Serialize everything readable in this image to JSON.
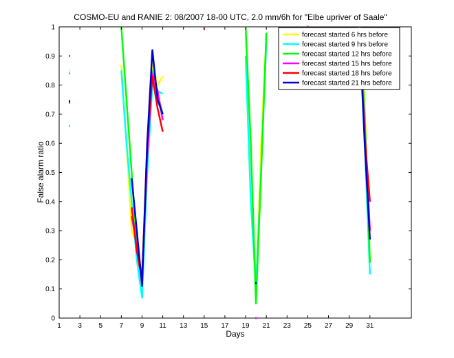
{
  "chart_data": {
    "type": "line",
    "title": "COSMO-EU and RANIE 2: 08/2007 18-00 UTC, 2.0 mm/6h for \"Elbe upriver of Saale\"",
    "xlabel": "Days",
    "ylabel": "False alarm ratio",
    "xlim": [
      1,
      35
    ],
    "ylim": [
      0,
      1
    ],
    "xticks": [
      1,
      3,
      5,
      7,
      9,
      11,
      13,
      15,
      17,
      19,
      21,
      23,
      25,
      27,
      29,
      31
    ],
    "yticks": [
      0,
      0.1,
      0.2,
      0.3,
      0.4,
      0.5,
      0.6,
      0.7,
      0.8,
      0.9,
      1
    ],
    "grid": false,
    "legend_position": "top-right",
    "series": [
      {
        "name": "forecast started 6 hrs before",
        "color": "#ffff00",
        "segments": [
          [
            [
              7,
              0.87
            ],
            [
              7.5,
              0.6
            ],
            [
              8,
              0.3
            ],
            [
              8.5,
              0.25
            ],
            [
              9,
              0.13
            ],
            [
              9.5,
              0.55
            ],
            [
              10,
              0.88
            ],
            [
              10.5,
              0.8
            ],
            [
              11,
              0.83
            ]
          ],
          [
            [
              19,
              0.98
            ],
            [
              19.5,
              0.6
            ],
            [
              20,
              0.07
            ],
            [
              20.5,
              0.6
            ],
            [
              21,
              0.97
            ]
          ],
          [
            [
              30,
              0.99
            ],
            [
              30.5,
              0.75
            ],
            [
              31,
              0.2
            ]
          ]
        ],
        "points": [
          [
            2,
            0.85
          ],
          [
            15,
            0.995
          ]
        ]
      },
      {
        "name": "forecast started 9 hrs before",
        "color": "#00ffff",
        "segments": [
          [
            [
              7,
              0.85
            ],
            [
              7.5,
              0.6
            ],
            [
              8,
              0.4
            ],
            [
              8.5,
              0.2
            ],
            [
              9,
              0.07
            ],
            [
              9.5,
              0.5
            ],
            [
              10,
              0.8
            ],
            [
              10.5,
              0.78
            ],
            [
              11,
              0.77
            ]
          ],
          [
            [
              19,
              0.9
            ],
            [
              19.5,
              0.4
            ],
            [
              20,
              0.1
            ],
            [
              20.5,
              0.5
            ],
            [
              21,
              0.95
            ]
          ],
          [
            [
              30,
              0.97
            ],
            [
              30.5,
              0.6
            ],
            [
              31,
              0.15
            ]
          ]
        ],
        "points": [
          [
            2,
            0.66
          ],
          [
            23,
            0.96
          ],
          [
            23,
            0.92
          ]
        ]
      },
      {
        "name": "forecast started 12 hrs before",
        "color": "#00ff00",
        "segments": [
          [
            [
              7,
              1.0
            ],
            [
              7.5,
              0.75
            ],
            [
              8,
              0.5
            ],
            [
              8.5,
              0.25
            ],
            [
              9,
              0.12
            ],
            [
              9.5,
              0.55
            ],
            [
              10,
              0.85
            ],
            [
              10.5,
              0.77
            ],
            [
              11,
              0.7
            ]
          ],
          [
            [
              19,
              1.0
            ],
            [
              19.5,
              0.6
            ],
            [
              20,
              0.05
            ],
            [
              20.5,
              0.5
            ],
            [
              21,
              0.98
            ]
          ],
          [
            [
              30,
              1.0
            ],
            [
              30.5,
              0.7
            ],
            [
              31,
              0.19
            ]
          ]
        ],
        "points": [
          [
            2,
            0.84
          ]
        ]
      },
      {
        "name": "forecast started 15 hrs before",
        "color": "#ff00ff",
        "segments": [
          [
            [
              8,
              0.35
            ],
            [
              8.5,
              0.25
            ],
            [
              9,
              0.14
            ],
            [
              9.5,
              0.55
            ],
            [
              10,
              0.84
            ],
            [
              10.5,
              0.78
            ],
            [
              11,
              0.68
            ]
          ],
          [
            [
              30,
              0.99
            ],
            [
              30.5,
              0.65
            ],
            [
              31,
              0.3
            ]
          ]
        ],
        "points": [
          [
            2,
            0.9
          ],
          [
            2,
            0.745
          ],
          [
            15,
            0.992
          ],
          [
            20,
            0.0
          ]
        ]
      },
      {
        "name": "forecast started 18 hrs before",
        "color": "#ff0000",
        "segments": [
          [
            [
              8,
              0.38
            ],
            [
              8.5,
              0.23
            ],
            [
              9,
              0.13
            ],
            [
              9.5,
              0.6
            ],
            [
              10,
              0.83
            ],
            [
              10.5,
              0.72
            ],
            [
              11,
              0.64
            ]
          ],
          [
            [
              30,
              0.98
            ],
            [
              30.5,
              0.62
            ],
            [
              31,
              0.4
            ]
          ]
        ],
        "points": [
          [
            2,
            0.74
          ],
          [
            23,
            0.9
          ],
          [
            23,
            0.87
          ],
          [
            25,
            1.0
          ]
        ]
      },
      {
        "name": "forecast started 21 hrs before",
        "color": "#0000cc",
        "segments": [
          [
            [
              8,
              0.48
            ],
            [
              8.5,
              0.3
            ],
            [
              9,
              0.11
            ],
            [
              9.5,
              0.6
            ],
            [
              10,
              0.92
            ],
            [
              10.5,
              0.75
            ],
            [
              11,
              0.7
            ]
          ],
          [
            [
              30,
              0.99
            ],
            [
              30.5,
              0.6
            ],
            [
              31,
              0.27
            ]
          ]
        ],
        "points": [
          [
            2,
            0.745
          ],
          [
            23,
            0.94
          ],
          [
            20,
            0.12
          ]
        ]
      }
    ]
  }
}
